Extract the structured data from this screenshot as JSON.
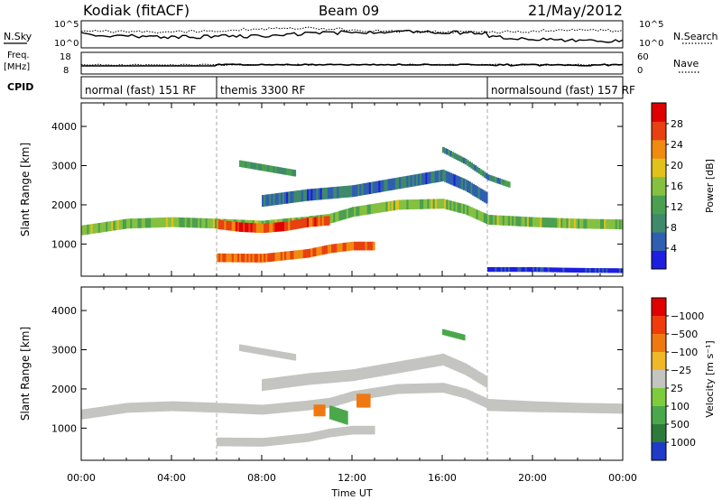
{
  "header": {
    "station": "Kodiak (fitACF)",
    "beam": "Beam 09",
    "date": "21/May/2012"
  },
  "summary_panels": {
    "nsky_label": "N.Sky",
    "nsearch_label": "N.Search",
    "noise_ticks": [
      "10^5",
      "10^0"
    ],
    "freq_label_top": "Freq.",
    "freq_label_unit": "[MHz]",
    "freq_ticks": [
      "18",
      "8"
    ],
    "nave_label": "Nave",
    "nave_ticks": [
      "60",
      "0"
    ],
    "cpid_label": "CPID",
    "cpid_segments": [
      {
        "name": "normal (fast) 151 RF",
        "start_hour": 0,
        "end_hour": 6
      },
      {
        "name": "themis 3300 RF",
        "start_hour": 6,
        "end_hour": 18
      },
      {
        "name": "normalsound (fast) 157 RF",
        "start_hour": 18,
        "end_hour": 24
      }
    ]
  },
  "chart_data": [
    {
      "type": "heatmap",
      "ylabel": "Slant Range [km]",
      "xlabel": "Time UT",
      "xlim": [
        0,
        24
      ],
      "ylim": [
        180,
        4600
      ],
      "yticks": [
        1000,
        2000,
        3000,
        4000
      ],
      "xtick_labels": [
        "00:00",
        "04:00",
        "08:00",
        "12:00",
        "16:00",
        "20:00",
        "00:00"
      ],
      "colorbar": {
        "label": "Power [dB]",
        "ticks": [
          "4",
          "8",
          "12",
          "16",
          "20",
          "24",
          "28"
        ],
        "colors": [
          "#1e1ee0",
          "#2f5fb0",
          "#3f8a6a",
          "#4aa050",
          "#86c040",
          "#e2c21a",
          "#f08a10",
          "#e84010",
          "#e00000"
        ]
      },
      "bands": [
        {
          "x": [
            0.0,
            2.0,
            4.0,
            6.0,
            8.0,
            10.0,
            11.0,
            12.0,
            14.0,
            16.0,
            17.0,
            18.0,
            20.0,
            22.0,
            24.0
          ],
          "y": [
            1350,
            1520,
            1560,
            1520,
            1470,
            1580,
            1650,
            1820,
            2000,
            2030,
            1880,
            1620,
            1560,
            1520,
            1500
          ],
          "width": 250,
          "level": 16
        },
        {
          "x": [
            6.0,
            7.0,
            8.0,
            9.0,
            10.0,
            11.0
          ],
          "y": [
            1500,
            1430,
            1400,
            1450,
            1550,
            1600
          ],
          "width": 240,
          "level": 27
        },
        {
          "x": [
            6.0,
            8.0,
            10.0,
            11.0,
            12.0,
            13.0
          ],
          "y": [
            650,
            640,
            760,
            880,
            950,
            950
          ],
          "width": 220,
          "level": 25
        },
        {
          "x": [
            7.0,
            8.0,
            9.0,
            9.5
          ],
          "y": [
            3050,
            2950,
            2850,
            2800
          ],
          "width": 170,
          "level": 12
        },
        {
          "x": [
            8.0,
            10.0,
            12.0,
            14.0,
            16.0,
            17.0,
            18.0
          ],
          "y": [
            2100,
            2250,
            2350,
            2550,
            2750,
            2500,
            2150
          ],
          "width": 300,
          "level": 8
        },
        {
          "x": [
            16.0,
            17.0,
            18.0,
            19.0
          ],
          "y": [
            3400,
            3100,
            2700,
            2500
          ],
          "width": 150,
          "level": 10
        },
        {
          "x": [
            18.0,
            20.0,
            22.0,
            24.0
          ],
          "y": [
            350,
            350,
            330,
            320
          ],
          "width": 120,
          "level": 4
        }
      ]
    },
    {
      "type": "heatmap",
      "ylabel": "Slant Range [km]",
      "xlabel": "Time UT",
      "xlim": [
        0,
        24
      ],
      "ylim": [
        180,
        4600
      ],
      "yticks": [
        1000,
        2000,
        3000,
        4000
      ],
      "xtick_labels": [
        "00:00",
        "04:00",
        "08:00",
        "12:00",
        "16:00",
        "20:00",
        "00:00"
      ],
      "colorbar": {
        "label": "Velocity [m s⁻¹]",
        "ticks": [
          "1000",
          "500",
          "100",
          "25",
          "−25",
          "−100",
          "−500",
          "−1000"
        ],
        "colors": [
          "#1e3cc8",
          "#2e7a3a",
          "#4aa84a",
          "#7ccc3c",
          "#c4c4c0",
          "#f0b828",
          "#f07810",
          "#f03c0c",
          "#e00000"
        ]
      },
      "bands": [
        {
          "x": [
            0.0,
            2.0,
            4.0,
            6.0,
            8.0,
            10.0,
            11.0,
            12.0,
            14.0,
            16.0,
            17.0,
            18.0,
            20.0,
            22.0,
            24.0
          ],
          "y": [
            1350,
            1520,
            1560,
            1520,
            1470,
            1580,
            1650,
            1820,
            2000,
            2030,
            1880,
            1620,
            1560,
            1520,
            1500
          ],
          "width": 250,
          "level": 0
        },
        {
          "x": [
            6.0,
            8.0,
            10.0,
            11.0,
            12.0,
            13.0
          ],
          "y": [
            650,
            640,
            760,
            880,
            950,
            950
          ],
          "width": 220,
          "level": 0
        },
        {
          "x": [
            7.0,
            8.0,
            9.0,
            9.5
          ],
          "y": [
            3050,
            2950,
            2850,
            2800
          ],
          "width": 170,
          "level": 0
        },
        {
          "x": [
            8.0,
            10.0,
            12.0,
            14.0,
            16.0,
            17.0,
            18.0
          ],
          "y": [
            2100,
            2250,
            2350,
            2550,
            2750,
            2500,
            2150
          ],
          "width": 300,
          "level": 0
        },
        {
          "x": [
            18.0,
            20.0,
            22.0,
            24.0
          ],
          "y": [
            1550,
            1520,
            1500,
            1480
          ],
          "width": 220,
          "level": 0
        },
        {
          "x": [
            10.3,
            10.8
          ],
          "y": [
            1450,
            1450
          ],
          "width": 300,
          "level": -300
        },
        {
          "x": [
            11.0,
            11.8
          ],
          "y": [
            1400,
            1250
          ],
          "width": 350,
          "level": 200
        },
        {
          "x": [
            12.2,
            12.8
          ],
          "y": [
            1700,
            1700
          ],
          "width": 350,
          "level": -300
        },
        {
          "x": [
            16.0,
            17.0
          ],
          "y": [
            3450,
            3300
          ],
          "width": 150,
          "level": 200
        }
      ]
    }
  ]
}
